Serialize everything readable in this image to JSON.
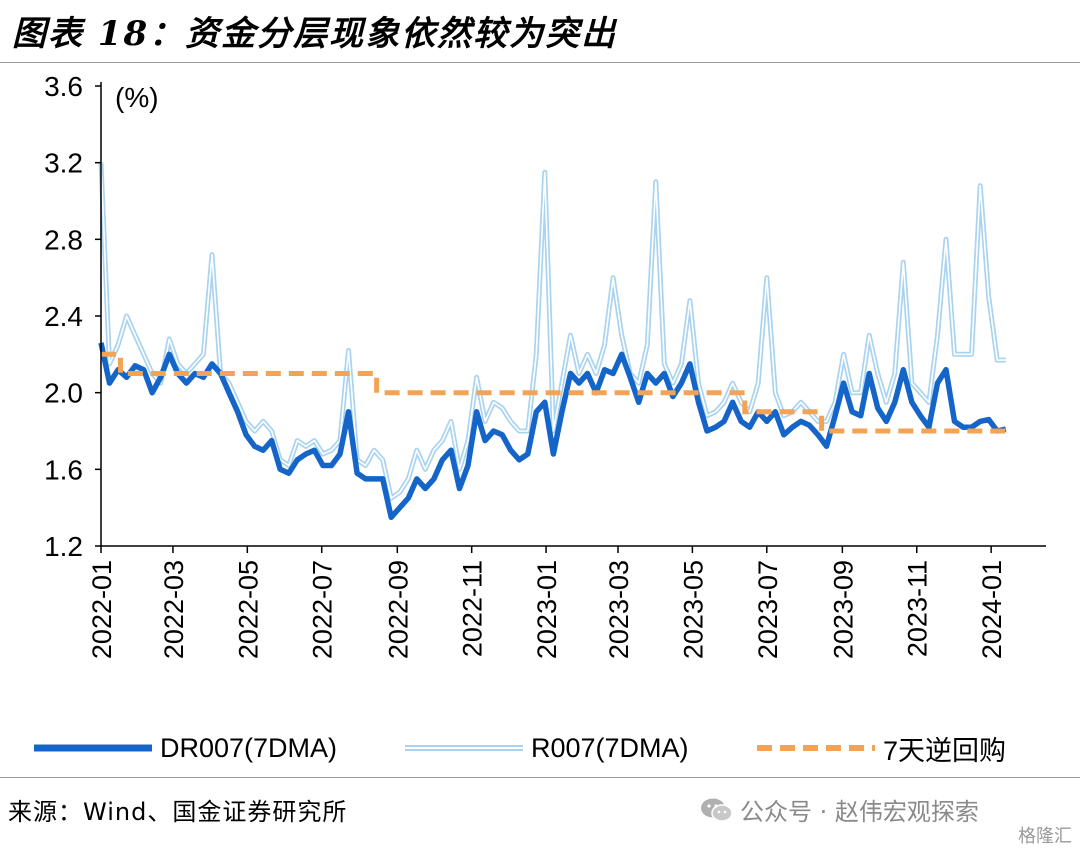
{
  "figure": {
    "title": "图表 18：资金分层现象依然较为突出",
    "source": "来源：Wind、国金证券研究所",
    "watermark": "公众号 · 赵伟宏观探索",
    "corner_logo": "格隆汇"
  },
  "chart_data": {
    "type": "line",
    "ylabel": "(%)",
    "ylim": [
      1.2,
      3.6
    ],
    "yticks": [
      "1.2",
      "1.6",
      "2.0",
      "2.4",
      "2.8",
      "3.2",
      "3.6"
    ],
    "xlim": [
      "2022-01-01",
      "2024-02-15"
    ],
    "xticks": [
      "2022-01",
      "2022-03",
      "2022-05",
      "2022-07",
      "2022-09",
      "2022-11",
      "2023-01",
      "2023-03",
      "2023-05",
      "2023-07",
      "2023-09",
      "2023-11",
      "2024-01"
    ],
    "grid": false,
    "legend_position": "bottom",
    "series": [
      {
        "name": "DR007(7DMA)",
        "color": "#1565c8",
        "style": "solid-thick",
        "points": [
          [
            "2022-01-01",
            2.26
          ],
          [
            "2022-01-08",
            2.05
          ],
          [
            "2022-01-15",
            2.12
          ],
          [
            "2022-01-22",
            2.08
          ],
          [
            "2022-01-29",
            2.14
          ],
          [
            "2022-02-05",
            2.12
          ],
          [
            "2022-02-12",
            2.0
          ],
          [
            "2022-02-19",
            2.08
          ],
          [
            "2022-02-26",
            2.2
          ],
          [
            "2022-03-05",
            2.1
          ],
          [
            "2022-03-12",
            2.05
          ],
          [
            "2022-03-19",
            2.1
          ],
          [
            "2022-03-26",
            2.08
          ],
          [
            "2022-04-02",
            2.15
          ],
          [
            "2022-04-09",
            2.1
          ],
          [
            "2022-04-16",
            2.0
          ],
          [
            "2022-04-23",
            1.9
          ],
          [
            "2022-04-30",
            1.78
          ],
          [
            "2022-05-07",
            1.72
          ],
          [
            "2022-05-14",
            1.7
          ],
          [
            "2022-05-21",
            1.75
          ],
          [
            "2022-05-28",
            1.6
          ],
          [
            "2022-06-04",
            1.58
          ],
          [
            "2022-06-11",
            1.65
          ],
          [
            "2022-06-18",
            1.68
          ],
          [
            "2022-06-25",
            1.7
          ],
          [
            "2022-07-02",
            1.62
          ],
          [
            "2022-07-09",
            1.62
          ],
          [
            "2022-07-16",
            1.68
          ],
          [
            "2022-07-23",
            1.9
          ],
          [
            "2022-07-30",
            1.58
          ],
          [
            "2022-08-06",
            1.55
          ],
          [
            "2022-08-13",
            1.55
          ],
          [
            "2022-08-20",
            1.55
          ],
          [
            "2022-08-27",
            1.35
          ],
          [
            "2022-09-03",
            1.4
          ],
          [
            "2022-09-10",
            1.45
          ],
          [
            "2022-09-17",
            1.55
          ],
          [
            "2022-09-24",
            1.5
          ],
          [
            "2022-10-01",
            1.55
          ],
          [
            "2022-10-08",
            1.65
          ],
          [
            "2022-10-15",
            1.7
          ],
          [
            "2022-10-22",
            1.5
          ],
          [
            "2022-10-29",
            1.62
          ],
          [
            "2022-11-05",
            1.9
          ],
          [
            "2022-11-12",
            1.75
          ],
          [
            "2022-11-19",
            1.8
          ],
          [
            "2022-11-26",
            1.78
          ],
          [
            "2022-12-03",
            1.7
          ],
          [
            "2022-12-10",
            1.65
          ],
          [
            "2022-12-17",
            1.68
          ],
          [
            "2022-12-24",
            1.9
          ],
          [
            "2022-12-31",
            1.95
          ],
          [
            "2023-01-07",
            1.68
          ],
          [
            "2023-01-14",
            1.9
          ],
          [
            "2023-01-21",
            2.1
          ],
          [
            "2023-01-28",
            2.05
          ],
          [
            "2023-02-04",
            2.1
          ],
          [
            "2023-02-11",
            2.0
          ],
          [
            "2023-02-18",
            2.12
          ],
          [
            "2023-02-25",
            2.1
          ],
          [
            "2023-03-04",
            2.2
          ],
          [
            "2023-03-11",
            2.08
          ],
          [
            "2023-03-18",
            1.95
          ],
          [
            "2023-03-25",
            2.1
          ],
          [
            "2023-04-01",
            2.05
          ],
          [
            "2023-04-08",
            2.1
          ],
          [
            "2023-04-15",
            1.98
          ],
          [
            "2023-04-22",
            2.05
          ],
          [
            "2023-04-29",
            2.15
          ],
          [
            "2023-05-06",
            1.95
          ],
          [
            "2023-05-13",
            1.8
          ],
          [
            "2023-05-20",
            1.82
          ],
          [
            "2023-05-27",
            1.85
          ],
          [
            "2023-06-03",
            1.95
          ],
          [
            "2023-06-10",
            1.85
          ],
          [
            "2023-06-17",
            1.82
          ],
          [
            "2023-06-24",
            1.9
          ],
          [
            "2023-07-01",
            1.85
          ],
          [
            "2023-07-08",
            1.9
          ],
          [
            "2023-07-15",
            1.78
          ],
          [
            "2023-07-22",
            1.82
          ],
          [
            "2023-07-29",
            1.85
          ],
          [
            "2023-08-05",
            1.83
          ],
          [
            "2023-08-12",
            1.78
          ],
          [
            "2023-08-19",
            1.72
          ],
          [
            "2023-08-26",
            1.88
          ],
          [
            "2023-09-02",
            2.05
          ],
          [
            "2023-09-09",
            1.9
          ],
          [
            "2023-09-16",
            1.88
          ],
          [
            "2023-09-23",
            2.1
          ],
          [
            "2023-09-30",
            1.92
          ],
          [
            "2023-10-07",
            1.85
          ],
          [
            "2023-10-14",
            1.95
          ],
          [
            "2023-10-21",
            2.12
          ],
          [
            "2023-10-28",
            1.95
          ],
          [
            "2023-11-04",
            1.88
          ],
          [
            "2023-11-11",
            1.82
          ],
          [
            "2023-11-18",
            2.05
          ],
          [
            "2023-11-25",
            2.12
          ],
          [
            "2023-12-02",
            1.85
          ],
          [
            "2023-12-09",
            1.82
          ],
          [
            "2023-12-16",
            1.82
          ],
          [
            "2023-12-23",
            1.85
          ],
          [
            "2023-12-30",
            1.86
          ],
          [
            "2024-01-06",
            1.8
          ],
          [
            "2024-01-13",
            1.81
          ]
        ]
      },
      {
        "name": "R007(7DMA)",
        "color": "#a9d3ef",
        "style": "double-thin",
        "points": [
          [
            "2022-01-01",
            3.2
          ],
          [
            "2022-01-08",
            2.15
          ],
          [
            "2022-01-15",
            2.25
          ],
          [
            "2022-01-22",
            2.4
          ],
          [
            "2022-01-29",
            2.3
          ],
          [
            "2022-02-05",
            2.2
          ],
          [
            "2022-02-12",
            2.1
          ],
          [
            "2022-02-19",
            2.05
          ],
          [
            "2022-02-26",
            2.28
          ],
          [
            "2022-03-05",
            2.15
          ],
          [
            "2022-03-12",
            2.1
          ],
          [
            "2022-03-19",
            2.15
          ],
          [
            "2022-03-26",
            2.2
          ],
          [
            "2022-04-02",
            2.72
          ],
          [
            "2022-04-09",
            2.1
          ],
          [
            "2022-04-16",
            2.05
          ],
          [
            "2022-04-23",
            1.95
          ],
          [
            "2022-04-30",
            1.85
          ],
          [
            "2022-05-07",
            1.8
          ],
          [
            "2022-05-14",
            1.85
          ],
          [
            "2022-05-21",
            1.8
          ],
          [
            "2022-05-28",
            1.65
          ],
          [
            "2022-06-04",
            1.62
          ],
          [
            "2022-06-11",
            1.75
          ],
          [
            "2022-06-18",
            1.72
          ],
          [
            "2022-06-25",
            1.75
          ],
          [
            "2022-07-02",
            1.68
          ],
          [
            "2022-07-09",
            1.7
          ],
          [
            "2022-07-16",
            1.75
          ],
          [
            "2022-07-23",
            2.22
          ],
          [
            "2022-07-30",
            1.65
          ],
          [
            "2022-08-06",
            1.62
          ],
          [
            "2022-08-13",
            1.7
          ],
          [
            "2022-08-20",
            1.65
          ],
          [
            "2022-08-27",
            1.45
          ],
          [
            "2022-09-03",
            1.48
          ],
          [
            "2022-09-10",
            1.55
          ],
          [
            "2022-09-17",
            1.7
          ],
          [
            "2022-09-24",
            1.6
          ],
          [
            "2022-10-01",
            1.7
          ],
          [
            "2022-10-08",
            1.75
          ],
          [
            "2022-10-15",
            1.85
          ],
          [
            "2022-10-22",
            1.6
          ],
          [
            "2022-10-29",
            1.75
          ],
          [
            "2022-11-05",
            2.08
          ],
          [
            "2022-11-12",
            1.85
          ],
          [
            "2022-11-19",
            1.95
          ],
          [
            "2022-11-26",
            1.92
          ],
          [
            "2022-12-03",
            1.85
          ],
          [
            "2022-12-10",
            1.8
          ],
          [
            "2022-12-17",
            1.8
          ],
          [
            "2022-12-24",
            2.2
          ],
          [
            "2022-12-31",
            3.15
          ],
          [
            "2023-01-07",
            1.8
          ],
          [
            "2023-01-14",
            2.05
          ],
          [
            "2023-01-21",
            2.3
          ],
          [
            "2023-01-28",
            2.1
          ],
          [
            "2023-02-04",
            2.2
          ],
          [
            "2023-02-11",
            2.1
          ],
          [
            "2023-02-18",
            2.25
          ],
          [
            "2023-02-25",
            2.6
          ],
          [
            "2023-03-04",
            2.3
          ],
          [
            "2023-03-11",
            2.1
          ],
          [
            "2023-03-18",
            2.05
          ],
          [
            "2023-03-25",
            2.25
          ],
          [
            "2023-04-01",
            3.1
          ],
          [
            "2023-04-08",
            2.15
          ],
          [
            "2023-04-15",
            2.05
          ],
          [
            "2023-04-22",
            2.15
          ],
          [
            "2023-04-29",
            2.48
          ],
          [
            "2023-05-06",
            2.05
          ],
          [
            "2023-05-13",
            1.88
          ],
          [
            "2023-05-20",
            1.9
          ],
          [
            "2023-05-27",
            1.95
          ],
          [
            "2023-06-03",
            2.05
          ],
          [
            "2023-06-10",
            1.95
          ],
          [
            "2023-06-17",
            1.9
          ],
          [
            "2023-06-24",
            2.05
          ],
          [
            "2023-07-01",
            2.6
          ],
          [
            "2023-07-08",
            2.0
          ],
          [
            "2023-07-15",
            1.88
          ],
          [
            "2023-07-22",
            1.9
          ],
          [
            "2023-07-29",
            1.95
          ],
          [
            "2023-08-05",
            1.9
          ],
          [
            "2023-08-12",
            1.85
          ],
          [
            "2023-08-19",
            1.85
          ],
          [
            "2023-08-26",
            1.95
          ],
          [
            "2023-09-02",
            2.2
          ],
          [
            "2023-09-09",
            2.0
          ],
          [
            "2023-09-16",
            2.0
          ],
          [
            "2023-09-23",
            2.3
          ],
          [
            "2023-09-30",
            2.1
          ],
          [
            "2023-10-07",
            1.95
          ],
          [
            "2023-10-14",
            2.1
          ],
          [
            "2023-10-21",
            2.68
          ],
          [
            "2023-10-28",
            2.05
          ],
          [
            "2023-11-04",
            2.0
          ],
          [
            "2023-11-11",
            1.95
          ],
          [
            "2023-11-18",
            2.3
          ],
          [
            "2023-11-25",
            2.8
          ],
          [
            "2023-12-02",
            2.2
          ],
          [
            "2023-12-09",
            2.2
          ],
          [
            "2023-12-16",
            2.2
          ],
          [
            "2023-12-23",
            3.08
          ],
          [
            "2023-12-30",
            2.5
          ],
          [
            "2024-01-06",
            2.17
          ],
          [
            "2024-01-13",
            2.17
          ]
        ]
      },
      {
        "name": "7天逆回购",
        "color": "#f4a354",
        "style": "dashed",
        "points": [
          [
            "2022-01-01",
            2.2
          ],
          [
            "2022-01-17",
            2.2
          ],
          [
            "2022-01-17",
            2.1
          ],
          [
            "2022-08-15",
            2.1
          ],
          [
            "2022-08-15",
            2.0
          ],
          [
            "2023-06-13",
            2.0
          ],
          [
            "2023-06-13",
            1.9
          ],
          [
            "2023-08-15",
            1.9
          ],
          [
            "2023-08-15",
            1.8
          ],
          [
            "2024-01-13",
            1.8
          ]
        ]
      }
    ]
  }
}
